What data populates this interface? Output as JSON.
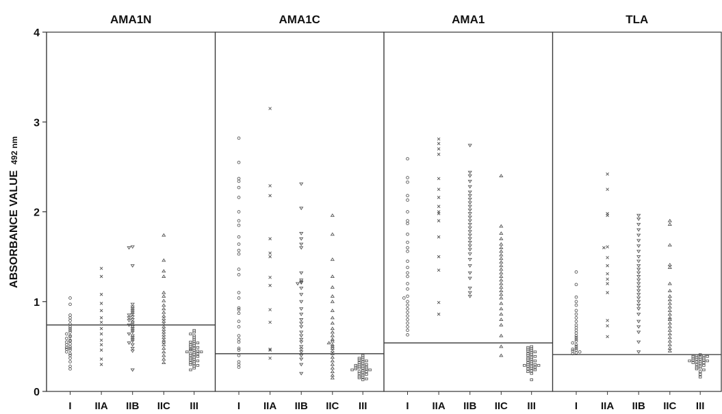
{
  "chart_data": {
    "type": "scatter",
    "y_axis": {
      "label_main": "ABSORBANCE VALUE",
      "label_sub": "492 nm",
      "ylim": [
        0,
        4
      ],
      "ticks": [
        0,
        1,
        2,
        3,
        4
      ]
    },
    "groups": [
      "I",
      "IIA",
      "IIB",
      "IIC",
      "III"
    ],
    "group_markers": {
      "I": "circle",
      "IIA": "cross",
      "IIB": "triangle-down",
      "IIC": "triangle-up",
      "III": "square"
    },
    "panels": [
      {
        "title": "AMA1N",
        "cutoff": 0.74,
        "series": {
          "I": [
            1.04,
            0.97,
            0.85,
            0.82,
            0.79,
            0.75,
            0.72,
            0.7,
            0.68,
            0.66,
            0.64,
            0.62,
            0.61,
            0.59,
            0.57,
            0.56,
            0.55,
            0.53,
            0.52,
            0.5,
            0.49,
            0.48,
            0.47,
            0.46,
            0.44,
            0.42,
            0.4,
            0.37,
            0.33,
            0.28,
            0.25
          ],
          "IIA": [
            1.37,
            1.28,
            1.08,
            0.98,
            0.9,
            0.82,
            0.77,
            0.7,
            0.64,
            0.57,
            0.52,
            0.46,
            0.36,
            0.3
          ],
          "IIB": [
            1.61,
            1.6,
            1.4,
            0.97,
            0.94,
            0.92,
            0.9,
            0.88,
            0.86,
            0.85,
            0.83,
            0.82,
            0.8,
            0.79,
            0.77,
            0.75,
            0.74,
            0.72,
            0.7,
            0.68,
            0.66,
            0.64,
            0.62,
            0.6,
            0.58,
            0.56,
            0.54,
            0.52,
            0.48,
            0.45,
            0.24
          ],
          "IIC": [
            1.74,
            1.46,
            1.34,
            1.28,
            1.1,
            1.06,
            1.01,
            0.96,
            0.92,
            0.88,
            0.84,
            0.81,
            0.78,
            0.75,
            0.72,
            0.69,
            0.66,
            0.63,
            0.6,
            0.57,
            0.55,
            0.52,
            0.48,
            0.44,
            0.4,
            0.36,
            0.32
          ],
          "III": [
            0.68,
            0.66,
            0.64,
            0.62,
            0.6,
            0.58,
            0.56,
            0.55,
            0.54,
            0.53,
            0.52,
            0.51,
            0.5,
            0.49,
            0.48,
            0.47,
            0.46,
            0.46,
            0.45,
            0.44,
            0.44,
            0.43,
            0.42,
            0.42,
            0.41,
            0.4,
            0.39,
            0.38,
            0.37,
            0.36,
            0.35,
            0.34,
            0.33,
            0.32,
            0.31,
            0.3,
            0.29,
            0.28,
            0.26,
            0.24
          ]
        }
      },
      {
        "title": "AMA1C",
        "cutoff": 0.42,
        "series": {
          "I": [
            2.82,
            2.55,
            2.37,
            2.34,
            2.27,
            2.16,
            2.0,
            1.9,
            1.85,
            1.72,
            1.64,
            1.57,
            1.53,
            1.36,
            1.3,
            1.1,
            1.04,
            0.93,
            0.91,
            0.87,
            0.78,
            0.72,
            0.62,
            0.58,
            0.55,
            0.48,
            0.46,
            0.4,
            0.33,
            0.3,
            0.27
          ],
          "IIA": [
            3.15,
            2.29,
            2.18,
            1.7,
            1.54,
            1.5,
            1.27,
            1.18,
            0.91,
            0.77,
            0.47,
            0.46,
            0.37
          ],
          "IIB": [
            2.31,
            2.04,
            1.76,
            1.7,
            1.64,
            1.6,
            1.32,
            1.24,
            1.22,
            1.21,
            1.2,
            1.15,
            1.08,
            1.0,
            0.92,
            0.86,
            0.8,
            0.76,
            0.72,
            0.66,
            0.62,
            0.58,
            0.55,
            0.5,
            0.47,
            0.44,
            0.4,
            0.36,
            0.3,
            0.2
          ],
          "IIC": [
            1.96,
            1.75,
            1.47,
            1.28,
            1.16,
            1.06,
            1.0,
            0.9,
            0.82,
            0.76,
            0.7,
            0.66,
            0.62,
            0.58,
            0.56,
            0.54,
            0.52,
            0.5,
            0.48,
            0.45,
            0.42,
            0.38,
            0.34,
            0.3,
            0.26,
            0.22,
            0.18,
            0.15
          ],
          "III": [
            0.4,
            0.38,
            0.37,
            0.36,
            0.35,
            0.34,
            0.33,
            0.32,
            0.31,
            0.3,
            0.3,
            0.29,
            0.28,
            0.28,
            0.27,
            0.27,
            0.26,
            0.26,
            0.25,
            0.25,
            0.24,
            0.24,
            0.23,
            0.22,
            0.22,
            0.21,
            0.2,
            0.19,
            0.18,
            0.17,
            0.16,
            0.15,
            0.14,
            0.13
          ]
        }
      },
      {
        "title": "AMA1",
        "cutoff": 0.54,
        "series": {
          "I": [
            2.59,
            2.38,
            2.33,
            2.18,
            2.13,
            2.0,
            1.9,
            1.87,
            1.75,
            1.66,
            1.6,
            1.56,
            1.45,
            1.38,
            1.32,
            1.28,
            1.2,
            1.14,
            1.06,
            1.04,
            1.0,
            0.96,
            0.92,
            0.88,
            0.84,
            0.8,
            0.76,
            0.72,
            0.68,
            0.63
          ],
          "IIA": [
            2.81,
            2.76,
            2.7,
            2.64,
            2.37,
            2.25,
            2.16,
            2.06,
            2.0,
            1.98,
            1.9,
            1.72,
            1.5,
            1.35,
            0.99,
            0.86
          ],
          "IIB": [
            2.74,
            2.44,
            2.4,
            2.34,
            2.28,
            2.22,
            2.18,
            2.14,
            2.1,
            2.06,
            2.02,
            1.98,
            1.94,
            1.9,
            1.86,
            1.82,
            1.78,
            1.74,
            1.7,
            1.66,
            1.62,
            1.58,
            1.53,
            1.47,
            1.4,
            1.32,
            1.26,
            1.15,
            1.1,
            1.06
          ],
          "IIC": [
            2.4,
            1.84,
            1.76,
            1.7,
            1.64,
            1.6,
            1.56,
            1.52,
            1.48,
            1.44,
            1.4,
            1.36,
            1.32,
            1.28,
            1.24,
            1.2,
            1.16,
            1.12,
            1.08,
            1.04,
            0.98,
            0.92,
            0.86,
            0.8,
            0.74,
            0.62,
            0.5,
            0.4
          ],
          "III": [
            0.5,
            0.49,
            0.48,
            0.47,
            0.46,
            0.45,
            0.44,
            0.43,
            0.42,
            0.41,
            0.4,
            0.39,
            0.38,
            0.37,
            0.36,
            0.35,
            0.34,
            0.33,
            0.32,
            0.31,
            0.3,
            0.3,
            0.29,
            0.29,
            0.28,
            0.28,
            0.27,
            0.26,
            0.25,
            0.24,
            0.23,
            0.22,
            0.2,
            0.13
          ]
        }
      },
      {
        "title": "TLA",
        "cutoff": 0.41,
        "series": {
          "I": [
            1.33,
            1.19,
            1.05,
            1.0,
            0.96,
            0.9,
            0.86,
            0.82,
            0.78,
            0.74,
            0.71,
            0.68,
            0.65,
            0.62,
            0.6,
            0.58,
            0.56,
            0.54,
            0.52,
            0.5,
            0.48,
            0.47,
            0.46,
            0.45,
            0.44,
            0.43,
            0.42
          ],
          "IIA": [
            2.42,
            2.25,
            1.98,
            1.96,
            1.61,
            1.6,
            1.49,
            1.4,
            1.31,
            1.25,
            1.2,
            1.1,
            0.79,
            0.73,
            0.61
          ],
          "IIB": [
            1.96,
            1.92,
            1.86,
            1.8,
            1.74,
            1.68,
            1.62,
            1.56,
            1.5,
            1.45,
            1.4,
            1.36,
            1.32,
            1.28,
            1.24,
            1.2,
            1.16,
            1.12,
            1.08,
            1.04,
            1.0,
            0.96,
            0.92,
            0.86,
            0.78,
            0.72,
            0.66,
            0.55,
            0.44
          ],
          "IIC": [
            1.9,
            1.86,
            1.63,
            1.41,
            1.38,
            1.2,
            1.12,
            1.06,
            1.02,
            0.98,
            0.94,
            0.9,
            0.86,
            0.82,
            0.8,
            0.76,
            0.72,
            0.68,
            0.64,
            0.6,
            0.56,
            0.52,
            0.48,
            0.45
          ],
          "III": [
            0.41,
            0.4,
            0.4,
            0.39,
            0.39,
            0.38,
            0.38,
            0.37,
            0.37,
            0.36,
            0.36,
            0.35,
            0.35,
            0.34,
            0.34,
            0.33,
            0.33,
            0.32,
            0.32,
            0.31,
            0.3,
            0.29,
            0.28,
            0.27,
            0.26,
            0.25,
            0.24,
            0.22,
            0.19,
            0.16
          ]
        }
      }
    ]
  }
}
